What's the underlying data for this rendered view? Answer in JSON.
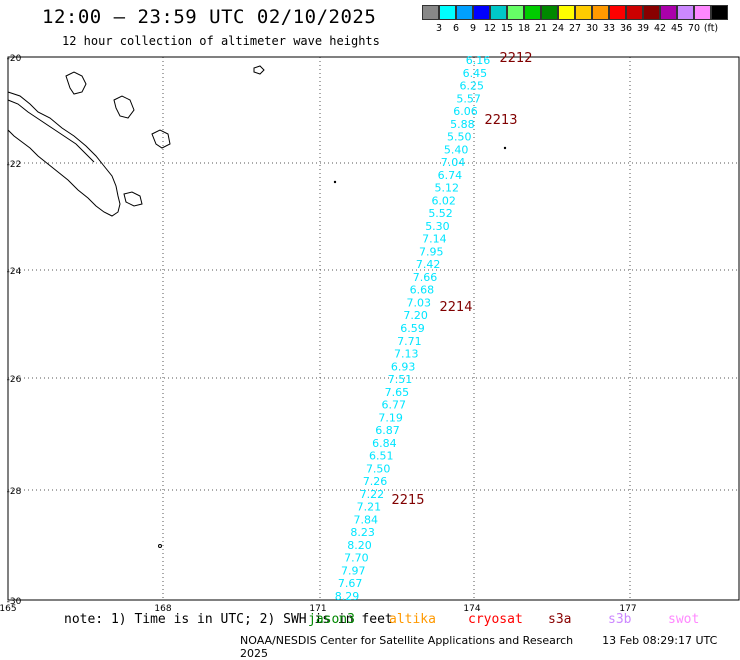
{
  "header": {
    "title": "12:00 – 23:59 UTC 02/10/2025",
    "subtitle": "12 hour collection of altimeter wave heights"
  },
  "legend": {
    "colors": [
      "#888888",
      "#00ffff",
      "#00a0ff",
      "#0000ff",
      "#00c8c8",
      "#66ff66",
      "#00cc00",
      "#008800",
      "#ffff00",
      "#ffcc00",
      "#ff9900",
      "#ff0000",
      "#cc0000",
      "#880000",
      "#aa00aa",
      "#cc88ff",
      "#ff88ff",
      "#000000"
    ],
    "labels": [
      "3",
      "6",
      "9",
      "12",
      "15",
      "18",
      "21",
      "24",
      "27",
      "30",
      "33",
      "36",
      "39",
      "42",
      "45",
      "70",
      "(ft)"
    ]
  },
  "axes": {
    "lat_labels": [
      "-20",
      "-22",
      "-24",
      "-26",
      "-28",
      "-30"
    ],
    "lon_labels": [
      "165",
      "168",
      "171",
      "174",
      "177"
    ]
  },
  "track": {
    "color": "#00e5ff",
    "values": [
      "6.16",
      "6.45",
      "6.25",
      "5.57",
      "6.06",
      "5.88",
      "5.50",
      "5.40",
      "7.04",
      "6.74",
      "5.12",
      "6.02",
      "5.52",
      "5.30",
      "7.14",
      "7.95",
      "7.42",
      "7.66",
      "6.68",
      "7.03",
      "7.20",
      "6.59",
      "7.71",
      "7.13",
      "6.93",
      "7.51",
      "7.65",
      "6.77",
      "7.19",
      "6.87",
      "6.84",
      "6.51",
      "7.50",
      "7.26",
      "7.22",
      "7.21",
      "7.84",
      "8.23",
      "8.20",
      "7.70",
      "7.97",
      "7.67",
      "8.29"
    ]
  },
  "time_labels": [
    "2212",
    "2213",
    "2214",
    "2215"
  ],
  "note": "note: 1) Time is in UTC; 2) SWH is in feet",
  "satellites": [
    {
      "name": "jason3",
      "color": "#008800"
    },
    {
      "name": "altika",
      "color": "#ff9900"
    },
    {
      "name": "cryosat",
      "color": "#ff0000"
    },
    {
      "name": "s3a",
      "color": "#880000"
    },
    {
      "name": "s3b",
      "color": "#cc88ff"
    },
    {
      "name": "swot",
      "color": "#ff88ff"
    }
  ],
  "footer": {
    "source": "NOAA/NESDIS Center for Satellite Applications and Research",
    "timestamp": "13 Feb 08:29:17 UTC 2025"
  }
}
